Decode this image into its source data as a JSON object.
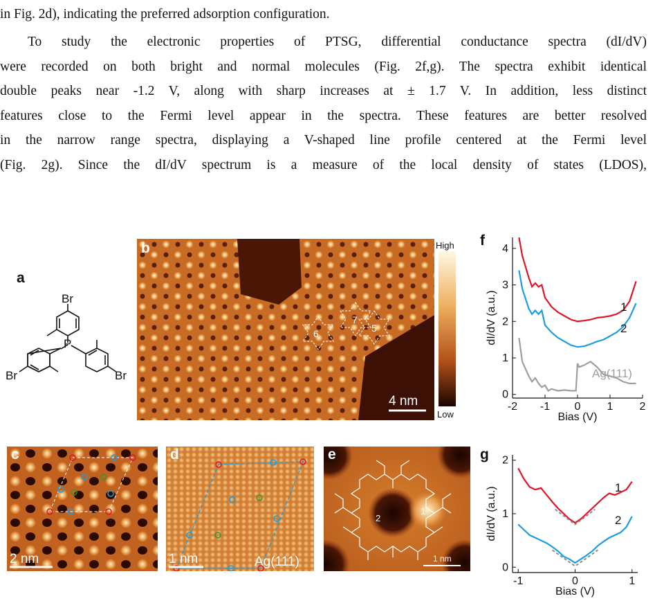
{
  "text": {
    "line0": "in Fig. 2d), indicating the preferred adsorption configuration.",
    "p_lines": [
      "To study the electronic properties of PTSG, differential conductance spectra (dI/dV)",
      "were recorded on both bright and normal molecules (Fig. 2f,g). The spectra exhibit identical",
      "double peaks near -1.2 V, along with sharp increases at ± 1.7 V. In addition, less distinct",
      "features close to the Fermi level appear in the spectra. These features are better resolved",
      "in the narrow range spectra, displaying a V-shaped line profile centered at the Fermi level",
      "(Fig. 2g). Since the dI/dV spectrum is a measure of the local density of states (LDOS),"
    ]
  },
  "figure": {
    "panel_labels": {
      "a": "a",
      "b": "b",
      "c": "c",
      "d": "d",
      "e": "e",
      "f": "f",
      "g": "g"
    },
    "molecule": {
      "br": "Br",
      "p": "P"
    },
    "b": {
      "scale": "4 nm",
      "colorbar_high": "High",
      "colorbar_low": "Low",
      "markers": [
        "6",
        "7",
        "5"
      ]
    },
    "c": {
      "scale": "2 nm"
    },
    "d": {
      "scale": "1 nm",
      "substrate": "Ag(111)"
    },
    "e": {
      "scale": "1 nm",
      "markers": [
        "2",
        "1"
      ]
    },
    "colors": {
      "curve1": "#e0142a",
      "curve2": "#1a9ee0",
      "ag": "#9e9e9e",
      "dashed": "#8a8a8a",
      "red_circle": "#e0142a",
      "blue_circle": "#1a9ee0",
      "green_circle": "#2e9a2e"
    }
  },
  "chart_data": [
    {
      "type": "line",
      "title": "",
      "xlabel": "Bias (V)",
      "ylabel": "dI/dV (a.u.)",
      "xlim": [
        -2,
        2
      ],
      "ylim": [
        -0.1,
        4.3
      ],
      "xticks": [
        -2,
        -1,
        0,
        1,
        2
      ],
      "yticks": [
        0,
        1,
        2,
        3,
        4
      ],
      "series": [
        {
          "name": "1",
          "x": [
            -1.8,
            -1.7,
            -1.5,
            -1.4,
            -1.3,
            -1.2,
            -1.1,
            -1.0,
            -0.8,
            -0.6,
            -0.4,
            -0.2,
            0,
            0.2,
            0.4,
            0.6,
            0.8,
            1.0,
            1.2,
            1.4,
            1.6,
            1.8
          ],
          "values": [
            4.3,
            3.8,
            3.2,
            2.95,
            3.05,
            2.95,
            3.0,
            2.65,
            2.4,
            2.25,
            2.15,
            2.05,
            2.0,
            2.02,
            2.05,
            2.1,
            2.12,
            2.15,
            2.2,
            2.3,
            2.55,
            3.1
          ]
        },
        {
          "name": "2",
          "x": [
            -1.8,
            -1.7,
            -1.5,
            -1.4,
            -1.3,
            -1.2,
            -1.1,
            -1.0,
            -0.8,
            -0.6,
            -0.4,
            -0.2,
            0,
            0.2,
            0.4,
            0.6,
            0.8,
            1.0,
            1.2,
            1.4,
            1.6,
            1.8
          ],
          "values": [
            3.4,
            2.9,
            2.35,
            2.2,
            2.3,
            2.2,
            2.3,
            1.9,
            1.7,
            1.55,
            1.45,
            1.35,
            1.3,
            1.32,
            1.38,
            1.45,
            1.5,
            1.6,
            1.7,
            1.85,
            2.1,
            2.5
          ]
        },
        {
          "name": "Ag(111)",
          "x": [
            -1.8,
            -1.7,
            -1.6,
            -1.5,
            -1.4,
            -1.3,
            -1.2,
            -1.1,
            -1.0,
            -0.9,
            -0.8,
            -0.6,
            -0.4,
            -0.2,
            -0.05,
            0.0,
            0.05,
            0.2,
            0.4,
            0.6,
            0.8,
            1.0,
            1.2,
            1.4,
            1.6,
            1.8
          ],
          "values": [
            1.55,
            0.9,
            0.7,
            0.5,
            0.35,
            0.45,
            0.3,
            0.2,
            0.25,
            0.1,
            0.15,
            0.1,
            0.12,
            0.1,
            0.1,
            0.85,
            0.75,
            0.8,
            0.9,
            0.75,
            0.55,
            0.5,
            0.45,
            0.35,
            0.3,
            0.3
          ]
        }
      ]
    },
    {
      "type": "line",
      "title": "",
      "xlabel": "Bias (V)",
      "ylabel": "dI/dV (a.u.)",
      "xlim": [
        -1.1,
        1.1
      ],
      "ylim": [
        -0.1,
        2.1
      ],
      "xticks": [
        -1,
        0,
        1
      ],
      "yticks": [
        0,
        1,
        2
      ],
      "series": [
        {
          "name": "1",
          "x": [
            -1.0,
            -0.9,
            -0.8,
            -0.7,
            -0.6,
            -0.5,
            -0.4,
            -0.3,
            -0.2,
            -0.1,
            0,
            0.1,
            0.2,
            0.3,
            0.4,
            0.5,
            0.6,
            0.7,
            0.8,
            0.9,
            1.0
          ],
          "values": [
            1.85,
            1.65,
            1.5,
            1.45,
            1.48,
            1.35,
            1.22,
            1.1,
            1.0,
            0.9,
            0.83,
            0.9,
            1.0,
            1.1,
            1.2,
            1.3,
            1.38,
            1.35,
            1.4,
            1.45,
            1.6
          ]
        },
        {
          "name": "2",
          "x": [
            -1.0,
            -0.9,
            -0.8,
            -0.7,
            -0.6,
            -0.5,
            -0.4,
            -0.3,
            -0.2,
            -0.1,
            0,
            0.1,
            0.2,
            0.3,
            0.4,
            0.5,
            0.6,
            0.7,
            0.8,
            0.9,
            1.0
          ],
          "values": [
            0.8,
            0.7,
            0.6,
            0.55,
            0.5,
            0.45,
            0.38,
            0.3,
            0.2,
            0.15,
            0.08,
            0.15,
            0.22,
            0.3,
            0.4,
            0.48,
            0.55,
            0.6,
            0.65,
            0.75,
            0.95
          ]
        }
      ]
    }
  ]
}
